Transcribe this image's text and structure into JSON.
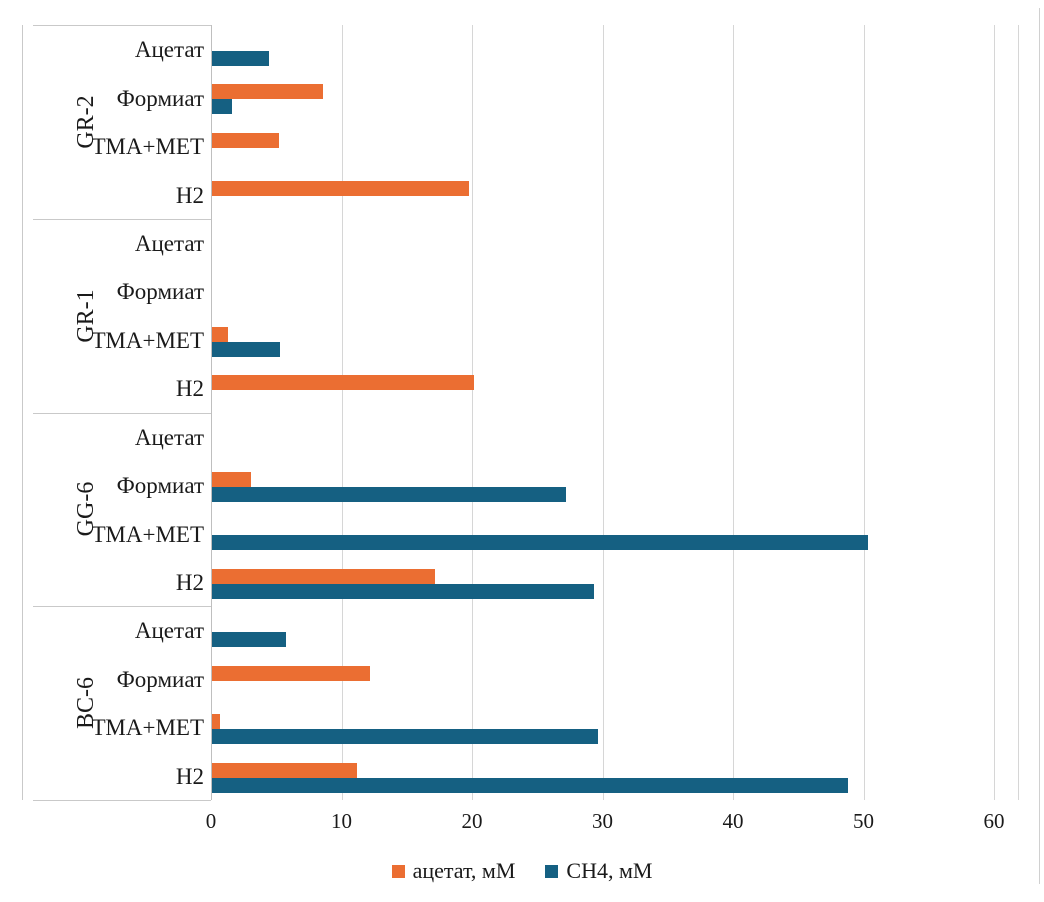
{
  "chart_data": {
    "type": "bar",
    "orientation": "horizontal",
    "title": "",
    "xlabel": "",
    "ylabel": "",
    "xlim": [
      0,
      60
    ],
    "xticks": [
      0,
      10,
      20,
      30,
      40,
      50,
      60
    ],
    "grid": "vertical-gridlines",
    "legend_position": "bottom-center",
    "categories": [
      "Ацетат",
      "Формиат",
      "ТМА+МЕТ",
      "Н2"
    ],
    "groups": [
      {
        "name": "GR-2",
        "series": [
          {
            "name": "ацетат, мМ",
            "values": [
              0,
              8.5,
              5.1,
              19.7
            ]
          },
          {
            "name": "СН4, мМ",
            "values": [
              4.4,
              1.5,
              0,
              0
            ]
          }
        ]
      },
      {
        "name": "GR-1",
        "series": [
          {
            "name": "ацетат, мМ",
            "values": [
              0,
              0,
              1.2,
              20.1
            ]
          },
          {
            "name": "СН4, мМ",
            "values": [
              0,
              0,
              5.2,
              0
            ]
          }
        ]
      },
      {
        "name": "GG-6",
        "series": [
          {
            "name": "ацетат, мМ",
            "values": [
              0,
              3,
              0,
              17.1
            ]
          },
          {
            "name": "СН4, мМ",
            "values": [
              0,
              27.1,
              50.3,
              29.3
            ]
          }
        ]
      },
      {
        "name": "BC-6",
        "series": [
          {
            "name": "ацетат, мМ",
            "values": [
              0,
              12.1,
              0.6,
              11.1
            ]
          },
          {
            "name": "СН4, мМ",
            "values": [
              5.7,
              0,
              29.6,
              48.7
            ]
          }
        ]
      }
    ],
    "legend": [
      {
        "label": "ацетат, мМ",
        "color": "#EB6E32"
      },
      {
        "label": "СН4, мМ",
        "color": "#156082"
      }
    ],
    "colors": {
      "acetate_series": "#EB6E32",
      "ch4_series": "#156082",
      "gridline": "#d6d6d6",
      "separator": "#c9c9c9",
      "text": "#1a1a1a"
    }
  }
}
